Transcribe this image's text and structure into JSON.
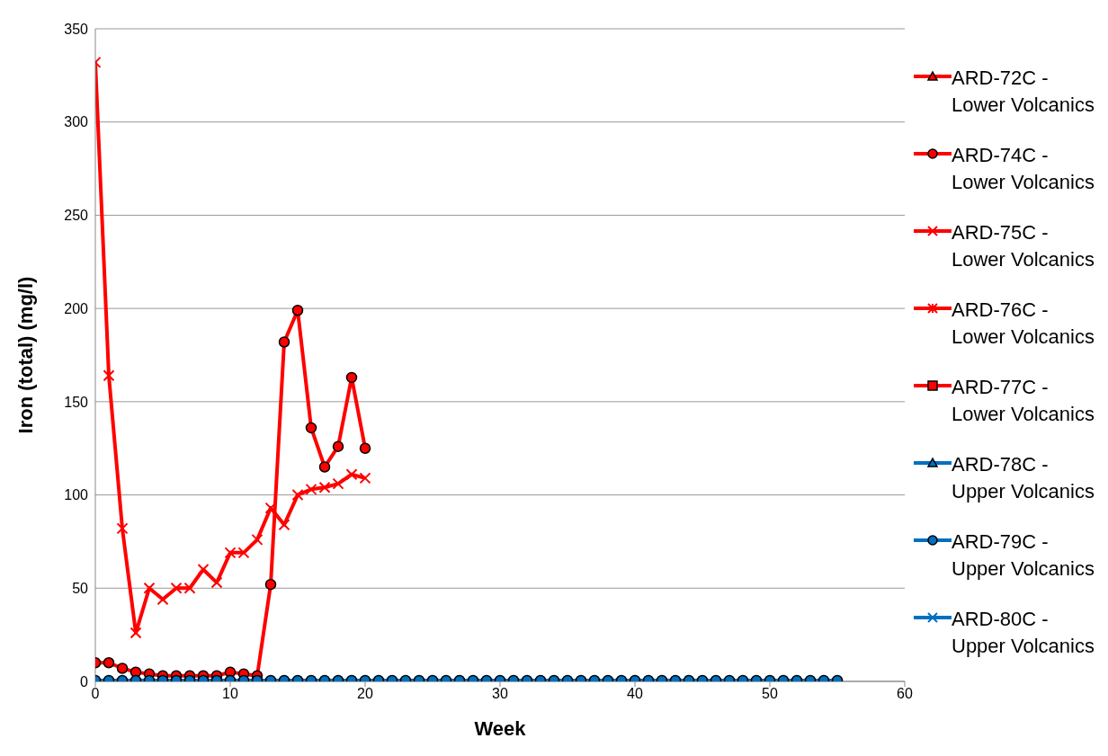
{
  "chart_data": {
    "type": "line",
    "xlabel": "Week",
    "ylabel": "Iron (total) (mg/l)",
    "xlim": [
      0,
      60
    ],
    "xticks": [
      0,
      10,
      20,
      30,
      40,
      50,
      60
    ],
    "ylim": [
      0,
      350
    ],
    "yticks": [
      0,
      50,
      100,
      150,
      200,
      250,
      300,
      350
    ],
    "grid": "y",
    "legend": "right",
    "line_style": "solid",
    "series": [
      {
        "name": "ARD-72C - Lower Volcanics",
        "color": "#ff0000",
        "marker": "triangle"
      },
      {
        "name": "ARD-74C - Lower Volcanics",
        "color": "#ff0000",
        "marker": "circle",
        "x": [
          0,
          1,
          2,
          3,
          4,
          5,
          6,
          7,
          8,
          9,
          10,
          11,
          12,
          13,
          14,
          15,
          16,
          17,
          18,
          19,
          20
        ],
        "values": [
          10,
          10,
          7,
          5,
          4,
          3,
          3,
          3,
          3,
          3,
          5,
          4,
          3,
          52,
          182,
          199,
          136,
          115,
          126,
          163,
          125
        ]
      },
      {
        "name": "ARD-75C - Lower Volcanics",
        "color": "#ff0000",
        "marker": "cross",
        "x": [
          0,
          1,
          2,
          3,
          4,
          5,
          6,
          7,
          8,
          9,
          10,
          11,
          12,
          13,
          14,
          15,
          16,
          17,
          18,
          19,
          20
        ],
        "values": [
          332,
          164,
          82,
          26,
          50,
          44,
          50,
          50,
          60,
          53,
          69,
          69,
          76,
          93,
          84,
          100,
          103,
          104,
          106,
          111,
          109
        ]
      },
      {
        "name": "ARD-76C - Lower Volcanics",
        "color": "#ff0000",
        "marker": "star"
      },
      {
        "name": "ARD-77C - Lower Volcanics",
        "color": "#ff0000",
        "marker": "square"
      },
      {
        "name": "ARD-78C - Upper Volcanics",
        "color": "#0070c0",
        "marker": "triangle"
      },
      {
        "name": "ARD-79C - Upper Volcanics",
        "color": "#0070c0",
        "marker": "circle",
        "x": [
          0,
          1,
          2,
          3,
          4,
          5,
          6,
          7,
          8,
          9,
          10,
          11,
          12,
          13,
          14,
          15,
          16,
          17,
          18,
          19,
          20,
          21,
          22,
          23,
          24,
          25,
          26,
          27,
          28,
          29,
          30,
          31,
          32,
          33,
          34,
          35,
          36,
          37,
          38,
          39,
          40,
          41,
          42,
          43,
          44,
          45,
          46,
          47,
          48,
          49,
          50,
          51,
          52,
          53,
          54,
          55
        ],
        "values": [
          0.5,
          0.5,
          0.5,
          0.5,
          0.5,
          0.5,
          0.5,
          0.5,
          0.5,
          0.5,
          0.5,
          0.5,
          0.5,
          0.5,
          0.5,
          0.5,
          0.5,
          0.5,
          0.5,
          0.5,
          0.5,
          0.5,
          0.5,
          0.5,
          0.5,
          0.5,
          0.5,
          0.5,
          0.5,
          0.5,
          0.5,
          0.5,
          0.5,
          0.5,
          0.5,
          0.5,
          0.5,
          0.5,
          0.5,
          0.5,
          0.5,
          0.5,
          0.5,
          0.5,
          0.5,
          0.5,
          0.5,
          0.5,
          0.5,
          0.5,
          0.5,
          0.5,
          0.5,
          0.5,
          0.5,
          0.5
        ]
      },
      {
        "name": "ARD-80C - Upper Volcanics",
        "color": "#0070c0",
        "marker": "cross"
      }
    ]
  }
}
